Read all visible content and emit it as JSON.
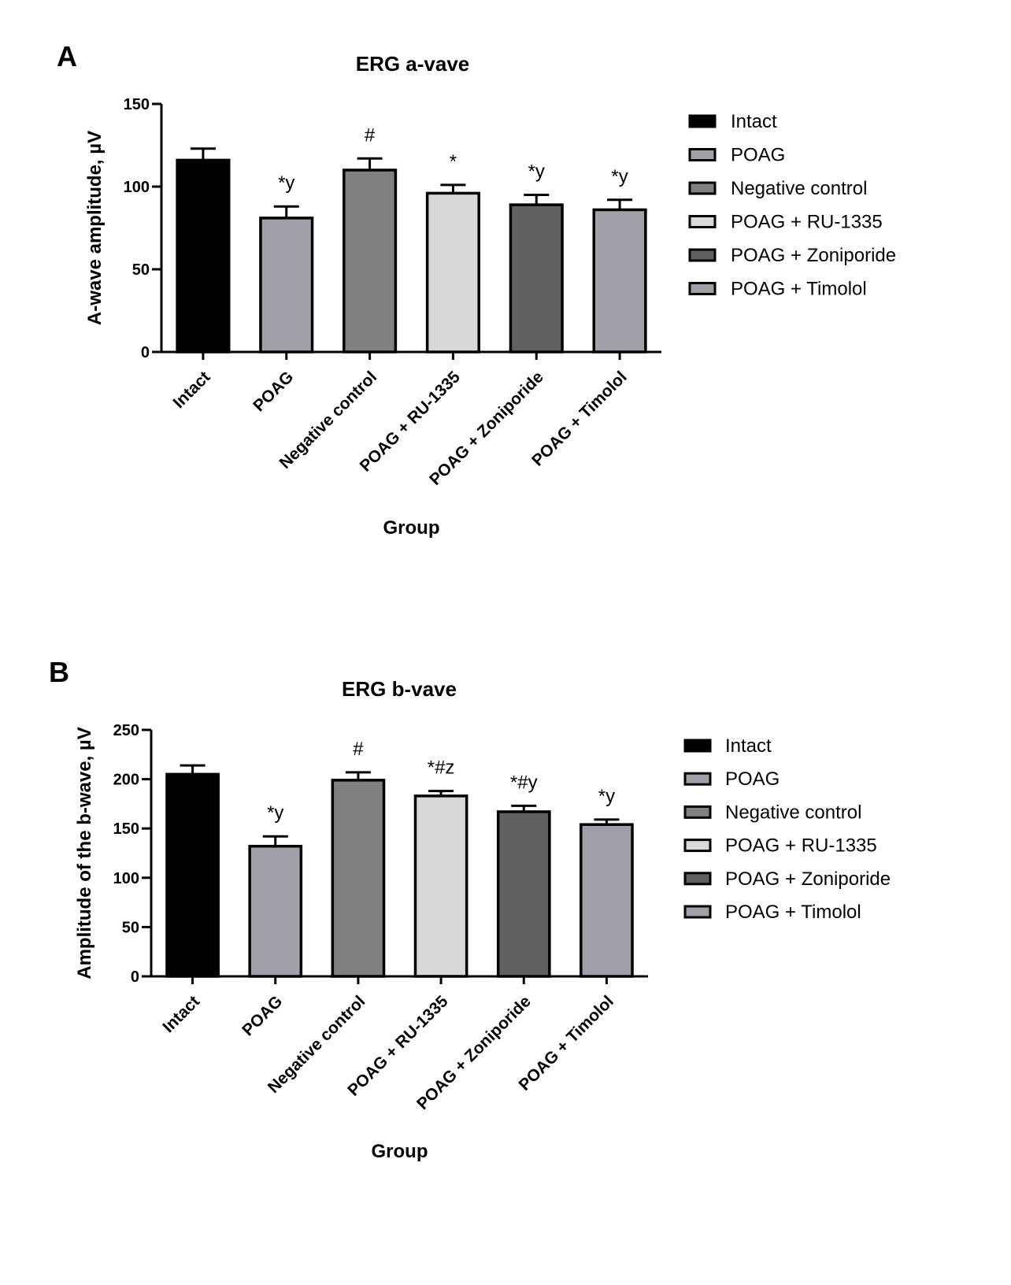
{
  "panels": [
    {
      "letter": "A",
      "chart_data": {
        "type": "bar",
        "title": "ERG a-vave",
        "xlabel": "Group",
        "ylabel": "A-wave amplitude, µV",
        "ylim": [
          0,
          150
        ],
        "yticks": [
          0,
          50,
          100,
          150
        ],
        "categories": [
          "Intact",
          "POAG",
          "Negative control",
          "POAG + RU-1335",
          "POAG + Zoniporide",
          "POAG + Timolol"
        ],
        "values": [
          116,
          81,
          110,
          96,
          89,
          86
        ],
        "errors": [
          7,
          7,
          7,
          5,
          6,
          6
        ],
        "annotations": [
          "",
          "*y",
          "#",
          "*",
          "*y",
          "*y"
        ],
        "colors": [
          "#000000",
          "#a0a0a8",
          "#808080",
          "#d8d8d8",
          "#606060",
          "#a0a0a8"
        ],
        "legend": {
          "position": "right",
          "entries": [
            "Intact",
            "POAG",
            "Negative control",
            "POAG + RU-1335",
            "POAG + Zoniporide",
            "POAG + Timolol"
          ]
        },
        "grid": false
      }
    },
    {
      "letter": "B",
      "chart_data": {
        "type": "bar",
        "title": "ERG b-vave",
        "xlabel": "Group",
        "ylabel": "Amplitude of the b-wave, µV",
        "ylim": [
          0,
          250
        ],
        "yticks": [
          0,
          50,
          100,
          150,
          200,
          250
        ],
        "categories": [
          "Intact",
          "POAG",
          "Negative control",
          "POAG + RU-1335",
          "POAG + Zoniporide",
          "POAG + Timolol"
        ],
        "values": [
          205,
          132,
          199,
          183,
          167,
          154
        ],
        "errors": [
          9,
          10,
          8,
          5,
          6,
          5
        ],
        "annotations": [
          "",
          "*y",
          "#",
          "*#z",
          "*#y",
          "*y"
        ],
        "colors": [
          "#000000",
          "#a0a0a8",
          "#808080",
          "#d8d8d8",
          "#606060",
          "#a0a0a8"
        ],
        "legend": {
          "position": "right",
          "entries": [
            "Intact",
            "POAG",
            "Negative control",
            "POAG + RU-1335",
            "POAG + Zoniporide",
            "POAG + Timolol"
          ]
        },
        "grid": false
      }
    }
  ]
}
